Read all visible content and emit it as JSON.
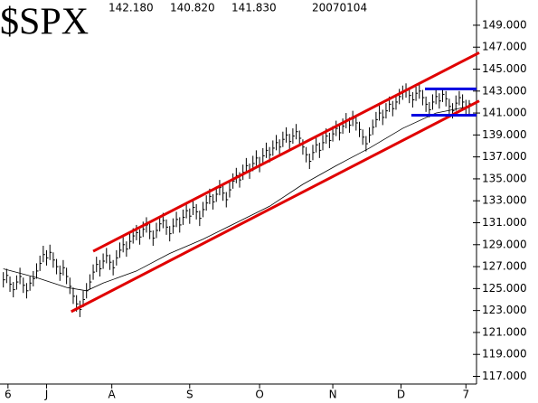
{
  "chart_data": {
    "type": "ohlc",
    "title": "$SPX",
    "header_labels": {
      "high": "142.180",
      "low": "140.820",
      "close": "141.830",
      "date": "20070104"
    },
    "x": [
      0,
      1,
      2,
      3,
      4,
      5,
      6,
      7,
      8,
      9,
      10,
      11,
      12,
      13,
      14,
      15,
      16,
      17,
      18,
      19,
      20,
      21,
      22,
      23,
      24,
      25,
      26,
      27,
      28,
      29,
      30,
      31,
      32,
      33,
      34,
      35,
      36,
      37,
      38,
      39,
      40,
      41,
      42,
      43,
      44,
      45,
      46,
      47,
      48,
      49,
      50,
      51,
      52,
      53,
      54,
      55,
      56,
      57,
      58,
      59,
      60,
      61,
      62,
      63,
      64,
      65,
      66,
      67,
      68,
      69,
      70,
      71,
      72,
      73,
      74,
      75,
      76,
      77,
      78,
      79,
      80,
      81,
      82,
      83,
      84,
      85,
      86,
      87,
      88,
      89,
      90,
      91,
      92,
      93,
      94,
      95,
      96,
      97,
      98,
      99,
      100,
      101,
      102,
      103,
      104,
      105,
      106,
      107,
      108,
      109,
      110,
      111,
      112,
      113,
      114,
      115,
      116,
      117,
      118,
      119,
      120,
      121,
      122,
      123,
      124,
      125,
      126,
      127,
      128,
      129,
      130,
      131,
      132,
      133,
      134,
      135,
      136,
      137,
      138,
      139,
      140
    ],
    "close": [
      125.8,
      126.2,
      125.4,
      124.9,
      125.6,
      126.1,
      125.3,
      124.8,
      125.5,
      125.9,
      126.6,
      127.3,
      128.1,
      127.8,
      128.3,
      127.6,
      127.0,
      126.4,
      126.9,
      126.1,
      125.2,
      124.3,
      123.6,
      123.1,
      124.0,
      124.8,
      125.6,
      126.5,
      127.2,
      126.8,
      127.5,
      128.0,
      127.4,
      126.9,
      127.8,
      128.5,
      129.0,
      128.6,
      129.3,
      129.8,
      130.1,
      129.7,
      130.4,
      130.8,
      130.2,
      129.6,
      130.3,
      130.9,
      131.2,
      130.6,
      130.0,
      130.7,
      131.3,
      130.8,
      131.5,
      132.1,
      131.6,
      132.4,
      132.0,
      131.4,
      132.2,
      132.8,
      133.4,
      132.9,
      133.6,
      134.2,
      133.7,
      133.1,
      134.0,
      134.8,
      135.3,
      134.9,
      135.6,
      136.2,
      135.7,
      136.4,
      136.9,
      136.3,
      137.1,
      137.6,
      137.2,
      137.8,
      138.3,
      137.9,
      138.6,
      139.0,
      138.4,
      138.9,
      139.3,
      138.7,
      137.9,
      137.2,
      136.6,
      137.4,
      138.1,
      137.6,
      138.3,
      138.9,
      138.5,
      139.1,
      139.6,
      139.2,
      139.8,
      140.3,
      139.9,
      140.5,
      140.1,
      139.5,
      138.8,
      138.2,
      139.0,
      139.7,
      140.4,
      141.0,
      140.6,
      141.2,
      141.8,
      141.4,
      142.0,
      142.5,
      142.9,
      143.1,
      142.6,
      142.2,
      142.8,
      143.0,
      142.4,
      141.8,
      141.3,
      142.0,
      142.5,
      142.1,
      142.7,
      142.3,
      141.6,
      141.2,
      141.9,
      142.4,
      142.0,
      141.5,
      141.83
    ],
    "high": [
      126.5,
      126.8,
      126.1,
      125.6,
      126.2,
      126.9,
      126.0,
      125.5,
      126.1,
      126.6,
      127.3,
      128.0,
      128.9,
      128.5,
      129.0,
      128.3,
      127.7,
      127.1,
      127.6,
      126.9,
      126.0,
      125.1,
      124.4,
      123.9,
      124.8,
      125.5,
      126.3,
      127.2,
      127.9,
      127.6,
      128.2,
      128.7,
      128.1,
      127.6,
      128.5,
      129.2,
      129.7,
      129.3,
      130.0,
      130.5,
      130.8,
      130.4,
      131.1,
      131.5,
      130.9,
      130.3,
      131.0,
      131.6,
      131.9,
      131.3,
      130.7,
      131.4,
      132.0,
      131.5,
      132.2,
      132.8,
      132.3,
      133.1,
      132.7,
      132.1,
      132.9,
      133.5,
      134.1,
      133.6,
      134.3,
      134.9,
      134.4,
      133.8,
      134.7,
      135.5,
      136.0,
      135.6,
      136.3,
      136.9,
      136.4,
      137.1,
      137.6,
      137.0,
      137.8,
      138.3,
      137.9,
      138.5,
      139.0,
      138.6,
      139.3,
      139.7,
      139.1,
      139.6,
      140.0,
      139.4,
      138.6,
      137.9,
      137.3,
      138.1,
      138.8,
      138.3,
      139.0,
      139.6,
      139.2,
      139.8,
      140.3,
      139.9,
      140.5,
      141.0,
      140.6,
      141.2,
      140.8,
      140.2,
      139.5,
      138.9,
      139.7,
      140.4,
      141.1,
      141.7,
      141.3,
      141.9,
      142.5,
      142.1,
      142.7,
      143.2,
      143.5,
      143.7,
      143.3,
      142.9,
      143.4,
      143.6,
      143.1,
      142.5,
      142.0,
      142.7,
      143.1,
      142.8,
      143.3,
      143.0,
      142.3,
      141.9,
      142.6,
      143.0,
      142.7,
      142.2,
      142.18
    ],
    "low": [
      125.1,
      125.5,
      124.7,
      124.2,
      124.9,
      125.4,
      124.6,
      124.1,
      124.8,
      125.2,
      125.9,
      126.6,
      127.4,
      127.1,
      127.6,
      126.9,
      126.3,
      125.7,
      126.2,
      125.4,
      124.5,
      123.6,
      122.9,
      122.4,
      123.3,
      124.1,
      124.9,
      125.8,
      126.5,
      126.1,
      126.8,
      127.3,
      126.7,
      126.2,
      127.1,
      127.8,
      128.3,
      127.9,
      128.6,
      129.1,
      129.4,
      129.0,
      129.7,
      130.1,
      129.5,
      128.9,
      129.6,
      130.2,
      130.5,
      129.9,
      129.3,
      130.0,
      130.6,
      130.1,
      130.8,
      131.4,
      130.9,
      131.7,
      131.3,
      130.7,
      131.5,
      132.1,
      132.7,
      132.2,
      132.9,
      133.5,
      133.0,
      132.4,
      133.3,
      134.1,
      134.6,
      134.2,
      134.9,
      135.5,
      135.0,
      135.7,
      136.2,
      135.6,
      136.4,
      136.9,
      136.5,
      137.1,
      137.6,
      137.2,
      137.9,
      138.3,
      137.7,
      138.2,
      138.6,
      138.0,
      137.2,
      136.5,
      135.9,
      136.7,
      137.4,
      136.9,
      137.6,
      138.2,
      137.8,
      138.4,
      138.9,
      138.5,
      139.1,
      139.6,
      139.2,
      139.8,
      139.4,
      138.8,
      138.1,
      137.5,
      138.3,
      139.0,
      139.7,
      140.3,
      139.9,
      140.5,
      141.1,
      140.7,
      141.3,
      141.8,
      142.2,
      142.4,
      141.9,
      141.5,
      142.1,
      142.3,
      141.7,
      141.1,
      140.6,
      141.3,
      141.8,
      141.4,
      142.0,
      141.6,
      140.9,
      140.5,
      141.2,
      141.7,
      141.3,
      140.8,
      140.82
    ],
    "ma": {
      "x": [
        0,
        10,
        19,
        25,
        30,
        40,
        50,
        60,
        70,
        80,
        90,
        100,
        110,
        120,
        130,
        140
      ],
      "values": [
        126.8,
        126.0,
        125.1,
        124.8,
        125.5,
        126.6,
        128.2,
        129.5,
        131.0,
        132.5,
        134.5,
        136.2,
        137.8,
        139.6,
        141.0,
        141.6
      ]
    },
    "lines": [
      {
        "color": "#e00000",
        "x": [
          20.4,
          143
        ],
        "y": [
          122.9,
          142.1
        ]
      },
      {
        "color": "#e00000",
        "x": [
          27.0,
          143
        ],
        "y": [
          128.4,
          146.5
        ]
      },
      {
        "color": "#0000e0",
        "x": [
          126.7,
          142.2
        ],
        "y": [
          143.2,
          143.2
        ]
      },
      {
        "color": "#0000e0",
        "x": [
          122.6,
          142.2
        ],
        "y": [
          140.8,
          140.8
        ]
      }
    ],
    "xlim": [
      -1,
      143
    ],
    "xticks": [
      {
        "value": 1.4,
        "label": "6"
      },
      {
        "value": 13,
        "label": "J"
      },
      {
        "value": 32.6,
        "label": "A"
      },
      {
        "value": 56,
        "label": "S"
      },
      {
        "value": 77,
        "label": "O"
      },
      {
        "value": 99,
        "label": "N"
      },
      {
        "value": 119.5,
        "label": "D"
      },
      {
        "value": 139,
        "label": "7"
      }
    ],
    "ylim": [
      116.3,
      151.3
    ],
    "yticks": [
      {
        "value": 117,
        "label": "117.000"
      },
      {
        "value": 119,
        "label": "119.000"
      },
      {
        "value": 121,
        "label": "121.000"
      },
      {
        "value": 123,
        "label": "123.000"
      },
      {
        "value": 125,
        "label": "125.000"
      },
      {
        "value": 127,
        "label": "127.000"
      },
      {
        "value": 129,
        "label": "129.000"
      },
      {
        "value": 131,
        "label": "131.000"
      },
      {
        "value": 133,
        "label": "133.000"
      },
      {
        "value": 135,
        "label": "135.000"
      },
      {
        "value": 137,
        "label": "137.000"
      },
      {
        "value": 139,
        "label": "139.000"
      },
      {
        "value": 141,
        "label": "141.000"
      },
      {
        "value": 143,
        "label": "143.000"
      },
      {
        "value": 145,
        "label": "145.000"
      },
      {
        "value": 147,
        "label": "147.000"
      },
      {
        "value": 149,
        "label": "149.000"
      }
    ]
  }
}
